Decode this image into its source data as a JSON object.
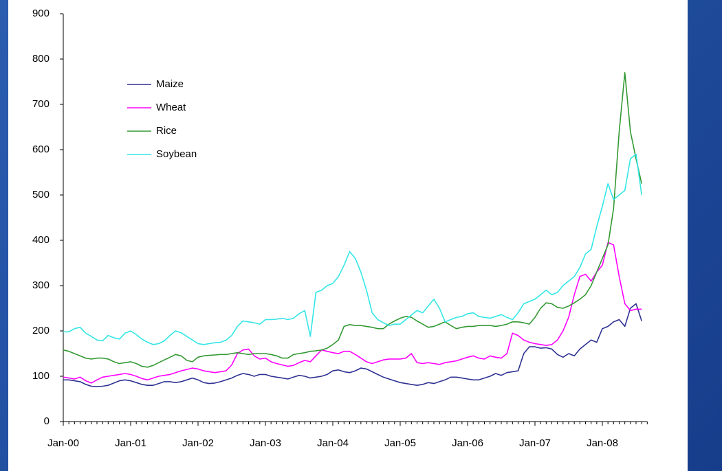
{
  "chart_data": {
    "type": "line",
    "categories": [
      "Jan-00",
      null,
      null,
      null,
      null,
      null,
      null,
      null,
      null,
      null,
      null,
      null,
      "Jan-01",
      null,
      null,
      null,
      null,
      null,
      null,
      null,
      null,
      null,
      null,
      null,
      "Jan-02",
      null,
      null,
      null,
      null,
      null,
      null,
      null,
      null,
      null,
      null,
      null,
      "Jan-03",
      null,
      null,
      null,
      null,
      null,
      null,
      null,
      null,
      null,
      null,
      null,
      "Jan-04",
      null,
      null,
      null,
      null,
      null,
      null,
      null,
      null,
      null,
      null,
      null,
      "Jan-05",
      null,
      null,
      null,
      null,
      null,
      null,
      null,
      null,
      null,
      null,
      null,
      "Jan-06",
      null,
      null,
      null,
      null,
      null,
      null,
      null,
      null,
      null,
      null,
      null,
      "Jan-07",
      null,
      null,
      null,
      null,
      null,
      null,
      null,
      null,
      null,
      null,
      null,
      "Jan-08",
      null,
      null,
      null,
      null,
      null,
      null,
      null
    ],
    "series": [
      {
        "name": "Maize",
        "color": "#2e3192",
        "values": [
          92,
          92,
          90,
          88,
          82,
          78,
          77,
          78,
          80,
          85,
          90,
          92,
          90,
          86,
          82,
          80,
          80,
          84,
          88,
          88,
          86,
          88,
          92,
          96,
          92,
          86,
          84,
          85,
          88,
          92,
          96,
          102,
          106,
          104,
          100,
          104,
          104,
          100,
          98,
          96,
          94,
          98,
          102,
          100,
          96,
          98,
          100,
          104,
          112,
          114,
          110,
          108,
          112,
          118,
          116,
          110,
          104,
          98,
          94,
          90,
          86,
          84,
          82,
          80,
          82,
          86,
          84,
          88,
          92,
          98,
          98,
          96,
          94,
          92,
          92,
          96,
          100,
          106,
          102,
          108,
          110,
          112,
          150,
          165,
          165,
          162,
          163,
          160,
          148,
          142,
          150,
          145,
          160,
          170,
          180,
          175,
          205,
          210,
          220,
          225,
          210,
          250,
          260,
          222
        ]
      },
      {
        "name": "Wheat",
        "color": "#ff00ff",
        "values": [
          98,
          96,
          94,
          98,
          90,
          85,
          92,
          98,
          100,
          102,
          104,
          106,
          104,
          100,
          95,
          92,
          96,
          100,
          102,
          104,
          108,
          112,
          115,
          118,
          116,
          112,
          110,
          108,
          110,
          112,
          125,
          150,
          158,
          160,
          145,
          138,
          140,
          132,
          128,
          125,
          122,
          124,
          130,
          135,
          132,
          145,
          158,
          155,
          152,
          150,
          155,
          155,
          148,
          140,
          132,
          128,
          132,
          136,
          138,
          138,
          138,
          140,
          150,
          130,
          128,
          130,
          128,
          126,
          130,
          132,
          134,
          138,
          142,
          145,
          140,
          138,
          145,
          142,
          140,
          150,
          195,
          190,
          180,
          175,
          172,
          170,
          168,
          170,
          180,
          200,
          230,
          280,
          320,
          325,
          310,
          330,
          345,
          395,
          390,
          320,
          260,
          245,
          248,
          248
        ]
      },
      {
        "name": "Rice",
        "color": "#339933",
        "values": [
          158,
          155,
          150,
          145,
          140,
          138,
          140,
          140,
          138,
          132,
          128,
          130,
          132,
          128,
          122,
          120,
          124,
          130,
          136,
          142,
          148,
          145,
          135,
          132,
          142,
          145,
          146,
          147,
          148,
          148,
          150,
          152,
          150,
          148,
          150,
          150,
          150,
          148,
          145,
          140,
          140,
          148,
          150,
          152,
          155,
          156,
          158,
          162,
          170,
          180,
          210,
          214,
          212,
          212,
          210,
          208,
          205,
          205,
          215,
          222,
          228,
          232,
          230,
          222,
          215,
          208,
          210,
          215,
          220,
          212,
          205,
          208,
          210,
          210,
          212,
          212,
          212,
          210,
          212,
          215,
          220,
          220,
          218,
          215,
          230,
          250,
          262,
          260,
          252,
          250,
          255,
          262,
          270,
          280,
          300,
          330,
          360,
          390,
          470,
          640,
          770,
          640,
          580,
          525
        ]
      },
      {
        "name": "Soybean",
        "color": "#33e6e6",
        "values": [
          198,
          198,
          205,
          208,
          195,
          188,
          180,
          178,
          190,
          185,
          182,
          195,
          200,
          192,
          182,
          175,
          170,
          172,
          178,
          190,
          200,
          196,
          188,
          180,
          172,
          170,
          172,
          174,
          175,
          180,
          190,
          210,
          222,
          220,
          218,
          215,
          225,
          225,
          226,
          228,
          225,
          228,
          238,
          245,
          188,
          285,
          290,
          300,
          305,
          320,
          345,
          375,
          360,
          330,
          290,
          240,
          225,
          218,
          212,
          215,
          215,
          225,
          235,
          245,
          240,
          255,
          270,
          250,
          220,
          225,
          230,
          232,
          238,
          240,
          232,
          230,
          228,
          232,
          236,
          230,
          225,
          240,
          260,
          265,
          270,
          280,
          290,
          280,
          285,
          300,
          310,
          320,
          340,
          370,
          380,
          430,
          475,
          525,
          490,
          500,
          510,
          580,
          590,
          500
        ]
      }
    ],
    "ylim": [
      0,
      900
    ],
    "yticks": [
      0,
      100,
      200,
      300,
      400,
      500,
      600,
      700,
      800,
      900
    ],
    "legend": "upper left"
  }
}
